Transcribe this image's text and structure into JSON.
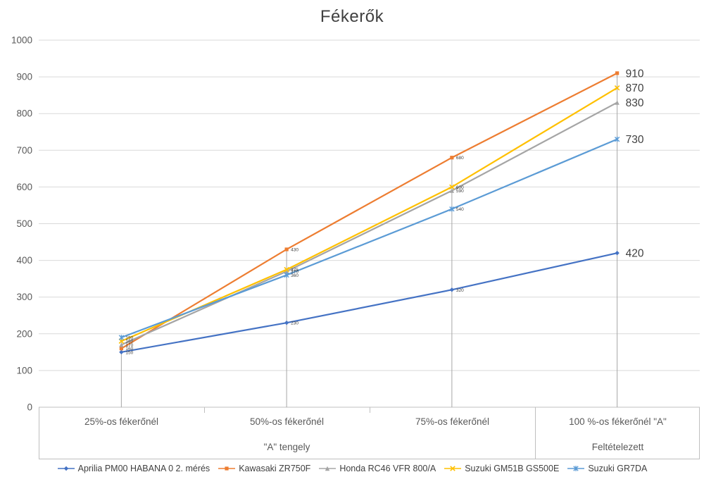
{
  "title": "Fékerők",
  "chart_data": {
    "type": "line",
    "title": "Fékerők",
    "categories": [
      "25%-os fékerőnél",
      "50%-os fékerőnél",
      "75%-os fékerőnél",
      "100 %-os fékerőnél \"A\""
    ],
    "category_groups": [
      {
        "label": "\"A\" tengely",
        "span": [
          0,
          2
        ]
      },
      {
        "label": "Feltételezett",
        "span": [
          3,
          3
        ]
      }
    ],
    "series": [
      {
        "name": "Aprilia PM00 HABANA 0 2. mérés",
        "color": "#4472C4",
        "marker": "diamond",
        "values": [
          150,
          230,
          320,
          420
        ]
      },
      {
        "name": "Kawasaki ZR750F",
        "color": "#ED7D31",
        "marker": "square",
        "values": [
          160,
          430,
          680,
          910
        ]
      },
      {
        "name": "Honda  RC46 VFR 800/A",
        "color": "#A5A5A5",
        "marker": "triangle",
        "values": [
          170,
          370,
          590,
          830
        ]
      },
      {
        "name": "Suzuki GM51B GS500E",
        "color": "#FFC000",
        "marker": "x",
        "values": [
          180,
          375,
          600,
          870
        ]
      },
      {
        "name": "Suzuki GR7DA",
        "color": "#5B9BD5",
        "marker": "asterisk",
        "values": [
          190,
          360,
          540,
          730
        ]
      }
    ],
    "end_labels": [
      420,
      910,
      830,
      870,
      730
    ],
    "ylim": [
      0,
      1000
    ],
    "ytick_step": 100,
    "grid": "horizontal",
    "legend_position": "bottom",
    "colors": {
      "grid": "#D9D9D9",
      "axis_line": "#BFBFBF",
      "axis_text": "#595959",
      "label_text": "#404040",
      "drop_line": "#A6A6A6"
    }
  }
}
